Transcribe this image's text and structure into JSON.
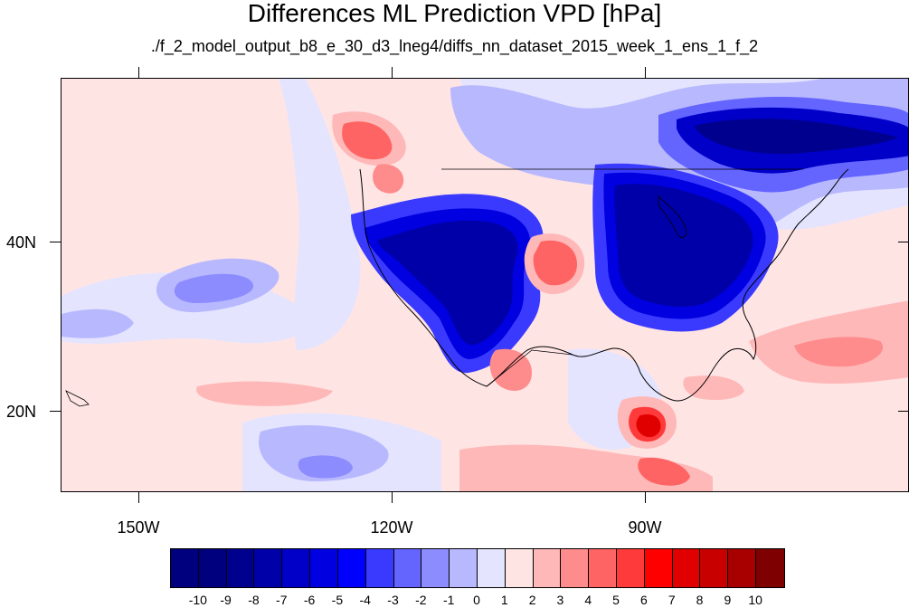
{
  "title": "Differences ML Prediction VPD [hPa]",
  "subtitle": "./f_2_model_output_b8_e_30_d3_lneg4/diffs_nn_dataset_2015_week_1_ens_1_f_2",
  "lat_labels": [
    "40N",
    "20N"
  ],
  "lon_labels": [
    "150W",
    "120W",
    "90W"
  ],
  "colorbar": {
    "labels": [
      "-10",
      "-9",
      "-8",
      "-7",
      "-6",
      "-5",
      "-4",
      "-3",
      "-2",
      "-1",
      "0",
      "1",
      "2",
      "3",
      "4",
      "5",
      "6",
      "7",
      "8",
      "9",
      "10"
    ],
    "colors": [
      "#00007f",
      "#00008f",
      "#0000a8",
      "#0000c8",
      "#0000e0",
      "#0000ff",
      "#3a3aff",
      "#6464ff",
      "#8c8cff",
      "#b8b8ff",
      "#e4e4ff",
      "#ffe4e4",
      "#ffb8b8",
      "#ff8c8c",
      "#ff6464",
      "#ff3a3a",
      "#ff0000",
      "#e00000",
      "#c80000",
      "#a80000",
      "#7f0000"
    ]
  },
  "map": {
    "extent_lon": [
      -160,
      -60
    ],
    "extent_lat": [
      10,
      58
    ],
    "background_color": "#ffe7e7",
    "coastline_color": "#000000"
  }
}
